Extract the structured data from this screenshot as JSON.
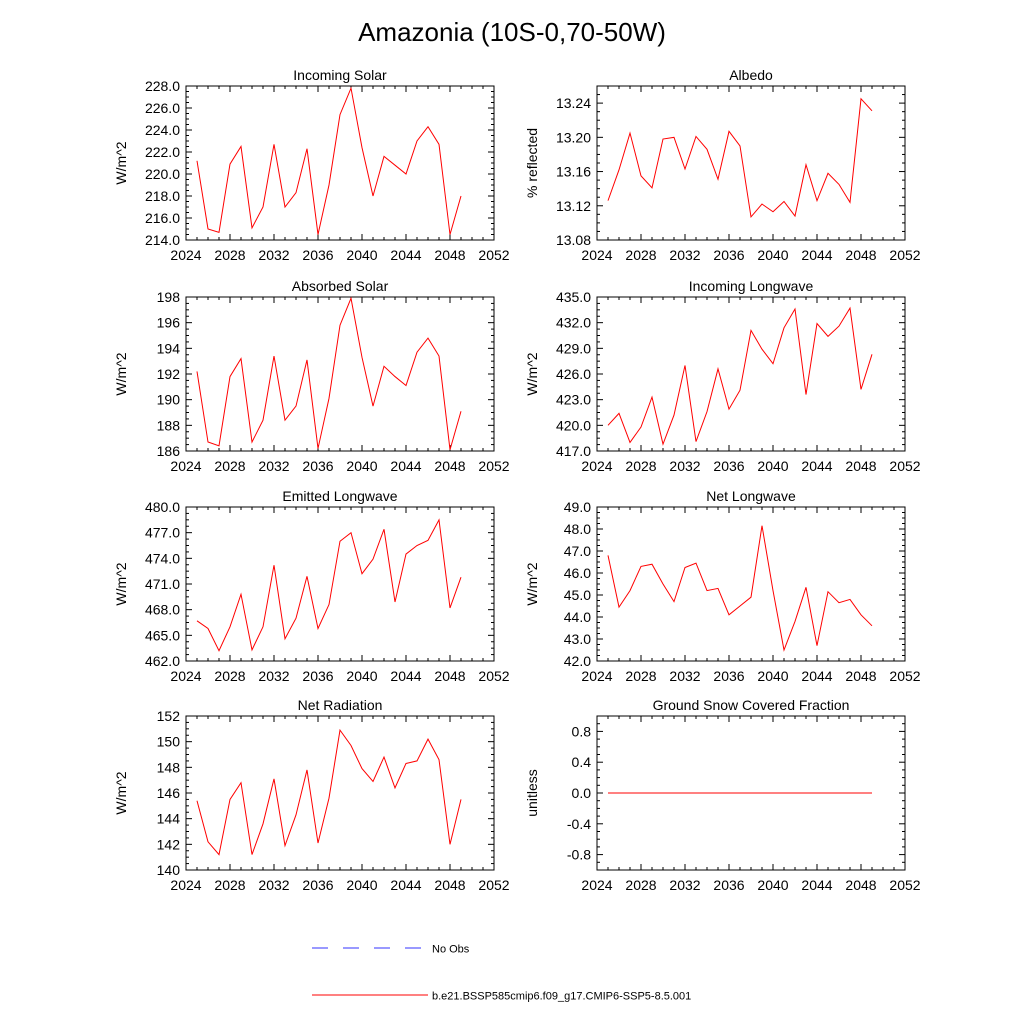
{
  "page_title": "Amazonia (10S-0,70-50W)",
  "colors": {
    "model_line": "#ff0000",
    "obs_line": "#3333ff",
    "axis": "#000000"
  },
  "legend": {
    "obs_label": "No Obs",
    "model_label": "b.e21.BSSP585cmip6.f09_g17.CMIP6-SSP5-8.5.001"
  },
  "chart_data": [
    {
      "type": "line",
      "title": "Incoming Solar",
      "ylabel": "W/m^2",
      "xlim": [
        2024,
        2052
      ],
      "ylim": [
        214,
        228
      ],
      "decimals": 1,
      "xticks": [
        2024,
        2028,
        2032,
        2036,
        2040,
        2044,
        2048,
        2052
      ],
      "yticks": [
        214,
        216,
        218,
        220,
        222,
        224,
        226,
        228
      ],
      "x": [
        2025,
        2026,
        2027,
        2028,
        2029,
        2030,
        2031,
        2032,
        2033,
        2034,
        2035,
        2036,
        2037,
        2038,
        2039,
        2040,
        2041,
        2042,
        2043,
        2044,
        2045,
        2046,
        2047,
        2048,
        2049
      ],
      "series": [
        {
          "name": "b.e21.BSSP585cmip6.f09_g17.CMIP6-SSP5-8.5.001",
          "values": [
            221.2,
            215.0,
            214.7,
            220.9,
            222.5,
            215.1,
            217.0,
            222.7,
            217.0,
            218.3,
            222.3,
            214.5,
            219.0,
            225.4,
            227.8,
            222.4,
            218.0,
            221.6,
            220.8,
            220.0,
            223.0,
            224.3,
            222.7,
            214.5,
            218.0
          ]
        }
      ]
    },
    {
      "type": "line",
      "title": "Albedo",
      "ylabel": "% reflected",
      "xlim": [
        2024,
        2052
      ],
      "ylim": [
        13.08,
        13.26
      ],
      "decimals": 2,
      "xticks": [
        2024,
        2028,
        2032,
        2036,
        2040,
        2044,
        2048,
        2052
      ],
      "yticks": [
        13.08,
        13.12,
        13.16,
        13.2,
        13.24
      ],
      "x": [
        2025,
        2026,
        2027,
        2028,
        2029,
        2030,
        2031,
        2032,
        2033,
        2034,
        2035,
        2036,
        2037,
        2038,
        2039,
        2040,
        2041,
        2042,
        2043,
        2044,
        2045,
        2046,
        2047,
        2048,
        2049
      ],
      "series": [
        {
          "name": "b.e21.BSSP585cmip6.f09_g17.CMIP6-SSP5-8.5.001",
          "values": [
            13.126,
            13.162,
            13.205,
            13.155,
            13.141,
            13.198,
            13.2,
            13.163,
            13.201,
            13.186,
            13.151,
            13.207,
            13.19,
            13.107,
            13.122,
            13.113,
            13.125,
            13.108,
            13.168,
            13.126,
            13.158,
            13.145,
            13.124,
            13.245,
            13.231
          ]
        }
      ]
    },
    {
      "type": "line",
      "title": "Absorbed Solar",
      "ylabel": "W/m^2",
      "xlim": [
        2024,
        2052
      ],
      "ylim": [
        186,
        198
      ],
      "decimals": 0,
      "xticks": [
        2024,
        2028,
        2032,
        2036,
        2040,
        2044,
        2048,
        2052
      ],
      "yticks": [
        186,
        188,
        190,
        192,
        194,
        196,
        198
      ],
      "x": [
        2025,
        2026,
        2027,
        2028,
        2029,
        2030,
        2031,
        2032,
        2033,
        2034,
        2035,
        2036,
        2037,
        2038,
        2039,
        2040,
        2041,
        2042,
        2043,
        2044,
        2045,
        2046,
        2047,
        2048,
        2049
      ],
      "series": [
        {
          "name": "b.e21.BSSP585cmip6.f09_g17.CMIP6-SSP5-8.5.001",
          "values": [
            192.2,
            186.7,
            186.4,
            191.8,
            193.2,
            186.7,
            188.4,
            193.4,
            188.4,
            189.5,
            193.1,
            186.2,
            190.1,
            195.8,
            197.9,
            193.3,
            189.5,
            192.6,
            191.8,
            191.1,
            193.7,
            194.8,
            193.4,
            186.1,
            189.1
          ]
        }
      ]
    },
    {
      "type": "line",
      "title": "Incoming Longwave",
      "ylabel": "W/m^2",
      "xlim": [
        2024,
        2052
      ],
      "ylim": [
        417,
        435
      ],
      "decimals": 1,
      "xticks": [
        2024,
        2028,
        2032,
        2036,
        2040,
        2044,
        2048,
        2052
      ],
      "yticks": [
        417,
        420,
        423,
        426,
        429,
        432,
        435
      ],
      "x": [
        2025,
        2026,
        2027,
        2028,
        2029,
        2030,
        2031,
        2032,
        2033,
        2034,
        2035,
        2036,
        2037,
        2038,
        2039,
        2040,
        2041,
        2042,
        2043,
        2044,
        2045,
        2046,
        2047,
        2048,
        2049
      ],
      "series": [
        {
          "name": "b.e21.BSSP585cmip6.f09_g17.CMIP6-SSP5-8.5.001",
          "values": [
            420.0,
            421.4,
            418.0,
            419.8,
            423.3,
            417.8,
            421.2,
            427.0,
            418.1,
            421.6,
            426.6,
            421.9,
            424.1,
            431.1,
            428.9,
            427.2,
            431.4,
            433.6,
            423.6,
            431.9,
            430.4,
            431.6,
            433.7,
            424.2,
            428.3
          ]
        }
      ]
    },
    {
      "type": "line",
      "title": "Emitted Longwave",
      "ylabel": "W/m^2",
      "xlim": [
        2024,
        2052
      ],
      "ylim": [
        462,
        480
      ],
      "decimals": 1,
      "xticks": [
        2024,
        2028,
        2032,
        2036,
        2040,
        2044,
        2048,
        2052
      ],
      "yticks": [
        462,
        465,
        468,
        471,
        474,
        477,
        480
      ],
      "x": [
        2025,
        2026,
        2027,
        2028,
        2029,
        2030,
        2031,
        2032,
        2033,
        2034,
        2035,
        2036,
        2037,
        2038,
        2039,
        2040,
        2041,
        2042,
        2043,
        2044,
        2045,
        2046,
        2047,
        2048,
        2049
      ],
      "series": [
        {
          "name": "b.e21.BSSP585cmip6.f09_g17.CMIP6-SSP5-8.5.001",
          "values": [
            466.7,
            465.8,
            463.2,
            466.0,
            469.8,
            463.3,
            466.0,
            473.2,
            464.6,
            467.0,
            471.9,
            465.8,
            468.6,
            476.0,
            477.0,
            472.2,
            473.9,
            477.4,
            468.9,
            474.5,
            475.5,
            476.1,
            478.5,
            468.2,
            471.8
          ]
        }
      ]
    },
    {
      "type": "line",
      "title": "Net Longwave",
      "ylabel": "W/m^2",
      "xlim": [
        2024,
        2052
      ],
      "ylim": [
        42,
        49
      ],
      "decimals": 1,
      "xticks": [
        2024,
        2028,
        2032,
        2036,
        2040,
        2044,
        2048,
        2052
      ],
      "yticks": [
        42,
        43,
        44,
        45,
        46,
        47,
        48,
        49
      ],
      "x": [
        2025,
        2026,
        2027,
        2028,
        2029,
        2030,
        2031,
        2032,
        2033,
        2034,
        2035,
        2036,
        2037,
        2038,
        2039,
        2040,
        2041,
        2042,
        2043,
        2044,
        2045,
        2046,
        2047,
        2048,
        2049
      ],
      "series": [
        {
          "name": "b.e21.BSSP585cmip6.f09_g17.CMIP6-SSP5-8.5.001",
          "values": [
            46.8,
            44.45,
            45.2,
            46.3,
            46.4,
            45.5,
            44.7,
            46.25,
            46.45,
            45.2,
            45.3,
            44.1,
            44.5,
            44.9,
            48.15,
            45.2,
            42.5,
            43.8,
            45.35,
            42.7,
            45.15,
            44.65,
            44.8,
            44.1,
            43.6
          ]
        }
      ]
    },
    {
      "type": "line",
      "title": "Net Radiation",
      "ylabel": "W/m^2",
      "xlim": [
        2024,
        2052
      ],
      "ylim": [
        140,
        152
      ],
      "decimals": 0,
      "xticks": [
        2024,
        2028,
        2032,
        2036,
        2040,
        2044,
        2048,
        2052
      ],
      "yticks": [
        140,
        142,
        144,
        146,
        148,
        150,
        152
      ],
      "x": [
        2025,
        2026,
        2027,
        2028,
        2029,
        2030,
        2031,
        2032,
        2033,
        2034,
        2035,
        2036,
        2037,
        2038,
        2039,
        2040,
        2041,
        2042,
        2043,
        2044,
        2045,
        2046,
        2047,
        2048,
        2049
      ],
      "series": [
        {
          "name": "b.e21.BSSP585cmip6.f09_g17.CMIP6-SSP5-8.5.001",
          "values": [
            145.4,
            142.2,
            141.2,
            145.5,
            146.8,
            141.2,
            143.6,
            147.1,
            141.9,
            144.3,
            147.8,
            142.1,
            145.6,
            150.9,
            149.7,
            147.9,
            146.9,
            148.8,
            146.4,
            148.3,
            148.5,
            150.2,
            148.6,
            142.0,
            145.5
          ]
        }
      ]
    },
    {
      "type": "line",
      "title": "Ground Snow Covered Fraction",
      "ylabel": "unitless",
      "xlim": [
        2024,
        2052
      ],
      "ylim": [
        -1.0,
        1.0
      ],
      "decimals": 1,
      "xticks": [
        2024,
        2028,
        2032,
        2036,
        2040,
        2044,
        2048,
        2052
      ],
      "yticks": [
        -0.8,
        -0.4,
        0.0,
        0.4,
        0.8
      ],
      "x": [
        2025,
        2026,
        2027,
        2028,
        2029,
        2030,
        2031,
        2032,
        2033,
        2034,
        2035,
        2036,
        2037,
        2038,
        2039,
        2040,
        2041,
        2042,
        2043,
        2044,
        2045,
        2046,
        2047,
        2048,
        2049
      ],
      "series": [
        {
          "name": "b.e21.BSSP585cmip6.f09_g17.CMIP6-SSP5-8.5.001",
          "values": [
            0,
            0,
            0,
            0,
            0,
            0,
            0,
            0,
            0,
            0,
            0,
            0,
            0,
            0,
            0,
            0,
            0,
            0,
            0,
            0,
            0,
            0,
            0,
            0,
            0
          ]
        }
      ]
    }
  ]
}
